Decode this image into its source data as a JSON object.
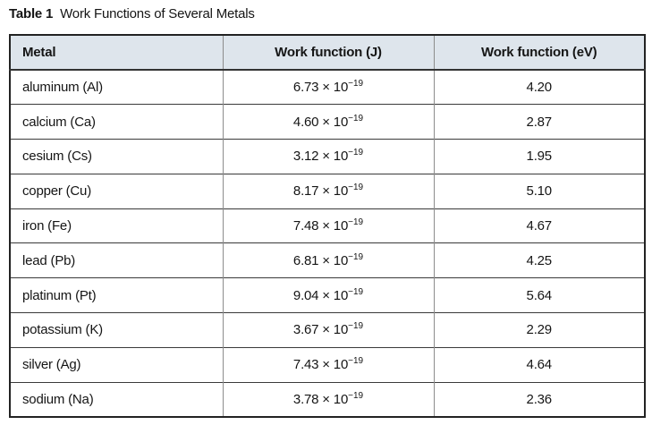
{
  "caption": {
    "label": "Table 1",
    "title": "Work Functions of Several Metals"
  },
  "colors": {
    "header_bg": "#dee5ec",
    "outer_border": "#222222",
    "row_rule": "#3a3a3a",
    "column_rule": "#8c8c8c",
    "text": "#151515"
  },
  "table": {
    "columns": [
      "Metal",
      "Work function (J)",
      "Work function (eV)"
    ],
    "rows": [
      {
        "metal": "aluminum (Al)",
        "wf_j_base": "6.73 × 10",
        "wf_j_exp": "−19",
        "wf_ev": "4.20"
      },
      {
        "metal": "calcium (Ca)",
        "wf_j_base": "4.60 × 10",
        "wf_j_exp": "−19",
        "wf_ev": "2.87"
      },
      {
        "metal": "cesium (Cs)",
        "wf_j_base": "3.12 × 10",
        "wf_j_exp": "−19",
        "wf_ev": "1.95"
      },
      {
        "metal": "copper (Cu)",
        "wf_j_base": "8.17 × 10",
        "wf_j_exp": "−19",
        "wf_ev": "5.10"
      },
      {
        "metal": "iron (Fe)",
        "wf_j_base": "7.48 × 10",
        "wf_j_exp": "−19",
        "wf_ev": "4.67"
      },
      {
        "metal": "lead (Pb)",
        "wf_j_base": "6.81 × 10",
        "wf_j_exp": "−19",
        "wf_ev": "4.25"
      },
      {
        "metal": "platinum (Pt)",
        "wf_j_base": "9.04 × 10",
        "wf_j_exp": "−19",
        "wf_ev": "5.64"
      },
      {
        "metal": "potassium (K)",
        "wf_j_base": "3.67 × 10",
        "wf_j_exp": "−19",
        "wf_ev": "2.29"
      },
      {
        "metal": "silver (Ag)",
        "wf_j_base": "7.43 × 10",
        "wf_j_exp": "−19",
        "wf_ev": "4.64"
      },
      {
        "metal": "sodium (Na)",
        "wf_j_base": "3.78 × 10",
        "wf_j_exp": "−19",
        "wf_ev": "2.36"
      }
    ]
  }
}
